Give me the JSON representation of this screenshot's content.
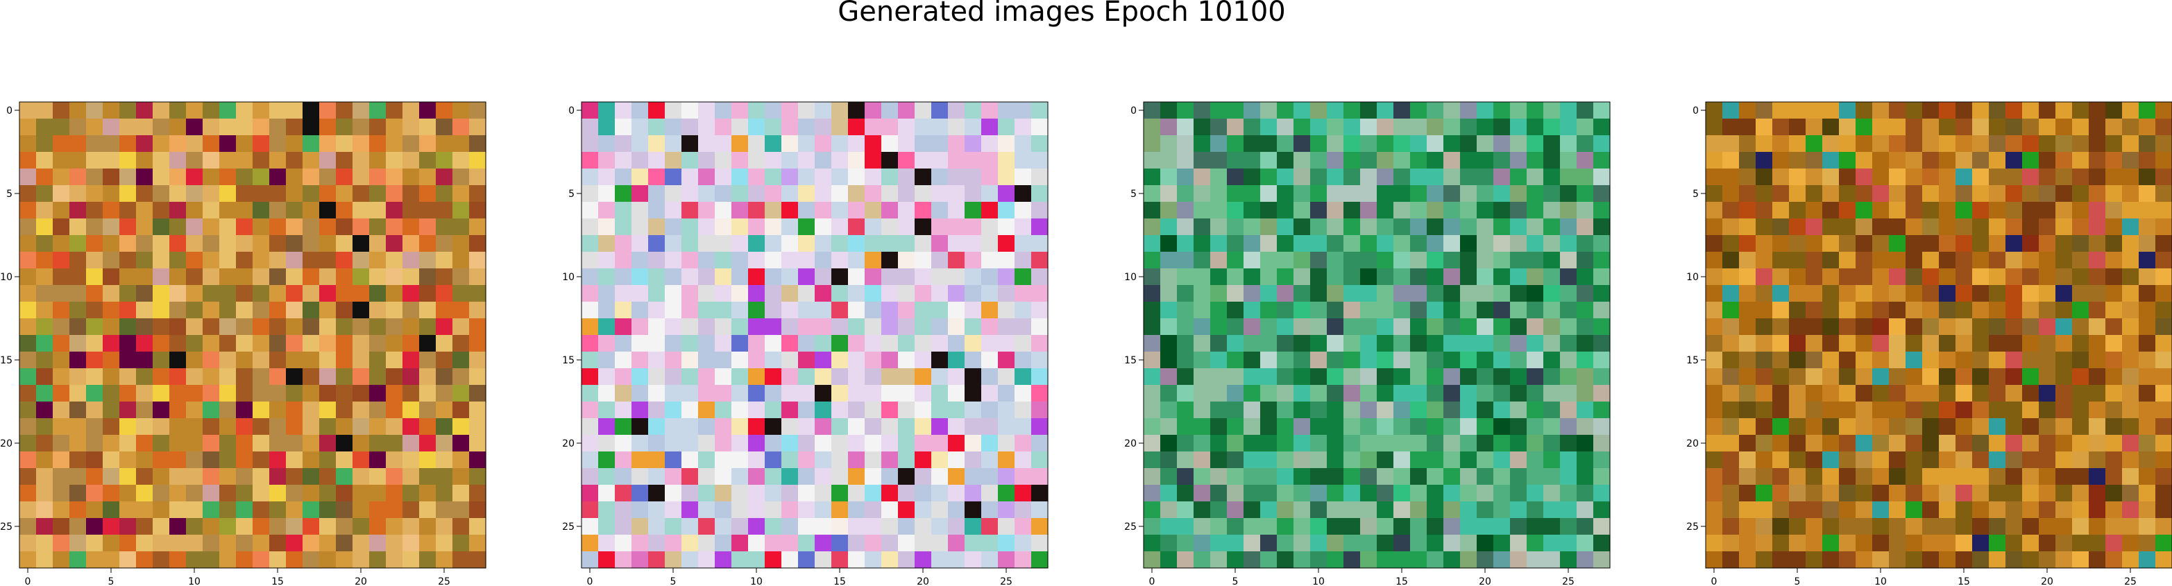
{
  "figure": {
    "title": "Generated images Epoch 10100"
  },
  "chart_data": [
    {
      "type": "heatmap",
      "panel": "generated-image-1",
      "grid_size": [
        28,
        28
      ],
      "xlim": [
        -0.5,
        27.5
      ],
      "ylim": [
        27.5,
        -0.5
      ],
      "x_ticks": [
        0,
        5,
        10,
        15,
        20,
        25
      ],
      "y_ticks": [
        0,
        5,
        10,
        15,
        20,
        25
      ],
      "grid": false,
      "palette": [
        "#c0872a",
        "#d49a3c",
        "#a35a22",
        "#e0b060",
        "#8d7a2a",
        "#e8c06a",
        "#d86a20",
        "#b58a46",
        "#f0a85a",
        "#9a4a1e",
        "#e24a2a",
        "#c8a870",
        "#7f5a30",
        "#f0c080",
        "#e0203a",
        "#a0a030",
        "#5a6a2a",
        "#d0a0a0",
        "#f2d040",
        "#b02040",
        "#600040",
        "#101010",
        "#40b060",
        "#f08050"
      ]
    },
    {
      "type": "heatmap",
      "panel": "generated-image-2",
      "grid_size": [
        28,
        28
      ],
      "xlim": [
        -0.5,
        27.5
      ],
      "ylim": [
        27.5,
        -0.5
      ],
      "x_ticks": [
        0,
        5,
        10,
        15,
        20,
        25
      ],
      "y_ticks": [
        0,
        5,
        10,
        15,
        20,
        25
      ],
      "grid": false,
      "palette": [
        "#f4f4f4",
        "#e8d8f0",
        "#d0c0e0",
        "#f0b0d8",
        "#c8d8e8",
        "#e0e0e0",
        "#b8c8e0",
        "#a0d8d0",
        "#f8f0e8",
        "#e84060",
        "#f01030",
        "#e070c0",
        "#b040e0",
        "#f0a030",
        "#6070d0",
        "#30b0a0",
        "#ff60a0",
        "#d8c090",
        "#1a1010",
        "#20a030",
        "#90e0f0",
        "#f8e8b0",
        "#c8a0f0",
        "#e03080"
      ]
    },
    {
      "type": "heatmap",
      "panel": "generated-image-3",
      "grid_size": [
        28,
        28
      ],
      "xlim": [
        -0.5,
        27.5
      ],
      "ylim": [
        27.5,
        -0.5
      ],
      "x_ticks": [
        0,
        5,
        10,
        15,
        20,
        25
      ],
      "y_ticks": [
        0,
        5,
        10,
        15,
        20,
        25
      ],
      "grid": false,
      "palette": [
        "#50b080",
        "#309060",
        "#20a050",
        "#70c090",
        "#90c0a0",
        "#108040",
        "#106030",
        "#40c0a0",
        "#a0b8a0",
        "#80a870",
        "#b0c8c0",
        "#60a0a0",
        "#c0c8b8",
        "#2a7050",
        "#407060",
        "#80d0b0",
        "#8890a8",
        "#a080a0",
        "#304050",
        "#c0b0a0",
        "#30c080",
        "#b8d8d0",
        "#60b070",
        "#005020"
      ]
    },
    {
      "type": "heatmap",
      "panel": "generated-image-4",
      "grid_size": [
        28,
        28
      ],
      "xlim": [
        -0.5,
        27.5
      ],
      "ylim": [
        27.5,
        -0.5
      ],
      "x_ticks": [
        0,
        5,
        10,
        15,
        20,
        25
      ],
      "y_ticks": [
        0,
        5,
        10,
        15,
        20,
        25
      ],
      "grid": false,
      "palette": [
        "#b06a10",
        "#c88020",
        "#9a5018",
        "#d09030",
        "#806010",
        "#a07020",
        "#7a3a10",
        "#e0a030",
        "#c06a20",
        "#906a30",
        "#b84a10",
        "#6a5010",
        "#d8a040",
        "#a08030",
        "#705a20",
        "#c09040",
        "#8a2a10",
        "#e0b050",
        "#50400a",
        "#20a020",
        "#202060",
        "#d05050",
        "#30a0a0",
        "#f0b040"
      ]
    }
  ]
}
